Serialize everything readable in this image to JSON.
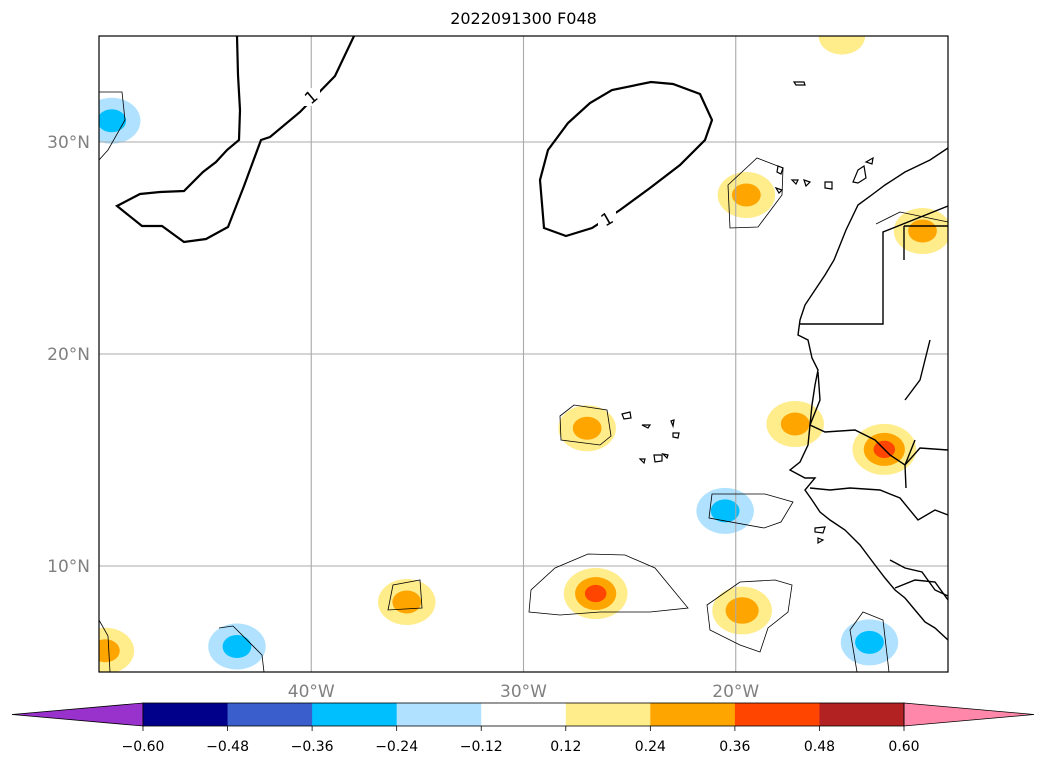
{
  "title": "2022091300 F048",
  "chart_data": {
    "type": "heatmap",
    "title": "2022091300 F048",
    "xlabel": "",
    "ylabel": "",
    "lon_range": [
      -50,
      -10
    ],
    "lat_range": [
      5,
      35
    ],
    "grid": true,
    "lon_ticks": [
      {
        "value": -40,
        "label": "40°W"
      },
      {
        "value": -30,
        "label": "30°W"
      },
      {
        "value": -20,
        "label": "20°W"
      }
    ],
    "lat_ticks": [
      {
        "value": 30,
        "label": "30°N"
      },
      {
        "value": 20,
        "label": "20°N"
      },
      {
        "value": 10,
        "label": "10°N"
      }
    ],
    "contour_label": "1",
    "colorbar": {
      "levels": [
        -0.6,
        -0.48,
        -0.36,
        -0.24,
        -0.12,
        0.12,
        0.24,
        0.36,
        0.48,
        0.6
      ],
      "tick_labels": [
        "−0.60",
        "−0.48",
        "−0.36",
        "−0.24",
        "−0.12",
        "0.12",
        "0.24",
        "0.36",
        "0.48",
        "0.60"
      ],
      "colors": [
        "#9932cc",
        "#00008b",
        "#3a5fcd",
        "#00bfff",
        "#b0e2ff",
        "#ffffff",
        "#ffec8b",
        "#ffa500",
        "#ff4500",
        "#b22222",
        "#ff88aa"
      ],
      "extend": "both"
    },
    "blobs": [
      {
        "lon": -49.4,
        "lat": 31.0,
        "value": -0.3
      },
      {
        "lon": -49.7,
        "lat": 6.0,
        "value": 0.3
      },
      {
        "lon": -43.5,
        "lat": 6.2,
        "value": -0.3
      },
      {
        "lon": -35.5,
        "lat": 8.3,
        "value": 0.3
      },
      {
        "lon": -26.6,
        "lat": 8.7,
        "value": 0.4
      },
      {
        "lon": -19.7,
        "lat": 7.9,
        "value": 0.33
      },
      {
        "lon": -20.5,
        "lat": 12.6,
        "value": -0.3
      },
      {
        "lon": -27.0,
        "lat": 16.5,
        "value": 0.3
      },
      {
        "lon": -19.5,
        "lat": 27.5,
        "value": 0.3
      },
      {
        "lon": -11.2,
        "lat": 25.8,
        "value": 0.3
      },
      {
        "lon": -13.0,
        "lat": 15.5,
        "value": 0.4
      },
      {
        "lon": -17.2,
        "lat": 16.7,
        "value": 0.3
      },
      {
        "lon": -13.7,
        "lat": 6.4,
        "value": -0.3
      },
      {
        "lon": -15.0,
        "lat": 35.0,
        "value": 0.2
      }
    ]
  }
}
